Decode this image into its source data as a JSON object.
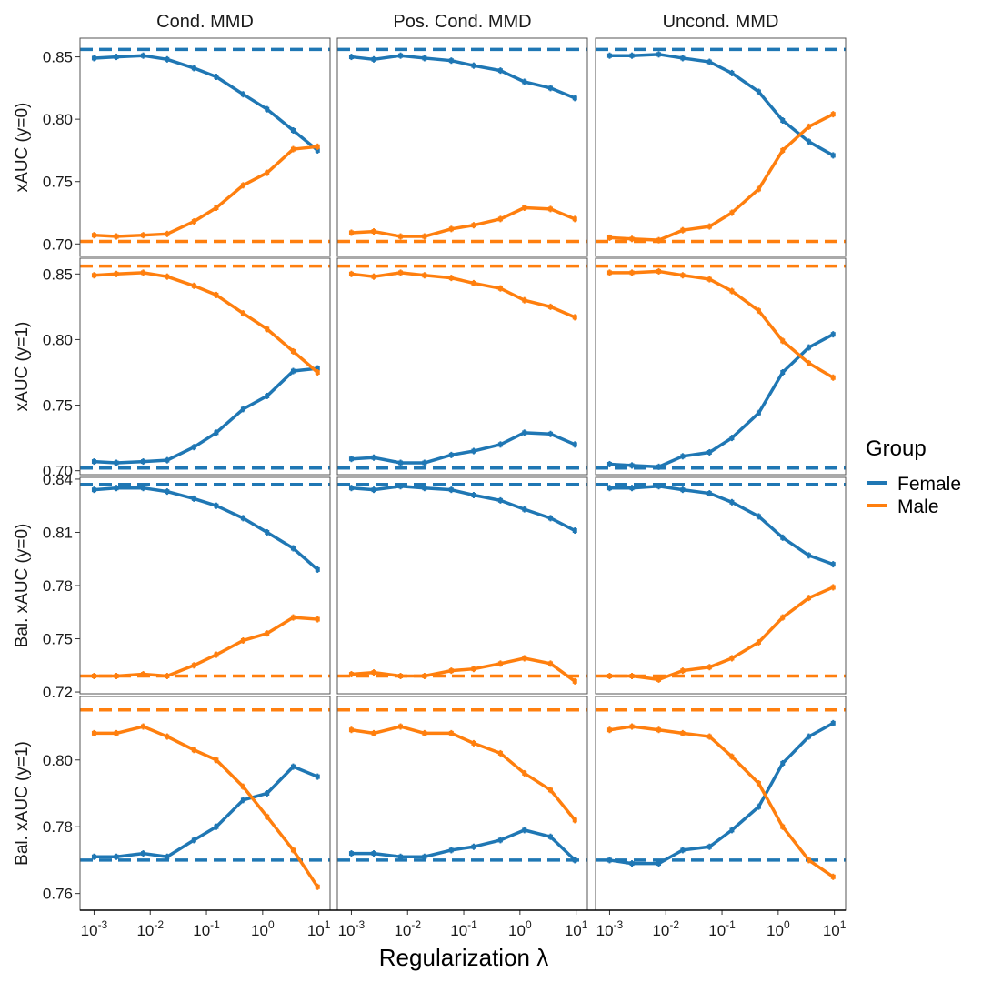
{
  "chart_data": {
    "type": "line",
    "xlabel": "Regularization λ",
    "x_scale": "log10",
    "x": [
      0.001,
      0.0025,
      0.0075,
      0.02,
      0.06,
      0.15,
      0.45,
      1.2,
      3.5,
      9.5
    ],
    "x_tick_values": [
      -3,
      -2,
      -1,
      0,
      1
    ],
    "x_tick_base": "10",
    "x_tick_exponents": [
      "-3",
      "-2",
      "-1",
      "0",
      "1"
    ],
    "columns": [
      "Cond. MMD",
      "Pos. Cond. MMD",
      "Uncond. MMD"
    ],
    "rows": [
      {
        "ylabel": "xAUC (y=0)",
        "ylim": [
          0.69,
          0.865
        ],
        "y_ticks": [
          0.7,
          0.75,
          0.8,
          0.85
        ],
        "y_tick_labels": [
          "0.70",
          "0.75",
          "0.80",
          "0.85"
        ],
        "ref_lines": {
          "Female": 0.856,
          "Male": 0.702
        },
        "panels": [
          {
            "Female": [
              0.849,
              0.85,
              0.851,
              0.848,
              0.841,
              0.834,
              0.82,
              0.808,
              0.791,
              0.775
            ],
            "Male": [
              0.707,
              0.706,
              0.707,
              0.708,
              0.718,
              0.729,
              0.747,
              0.757,
              0.776,
              0.778
            ]
          },
          {
            "Female": [
              0.85,
              0.848,
              0.851,
              0.849,
              0.847,
              0.843,
              0.839,
              0.83,
              0.825,
              0.817
            ],
            "Male": [
              0.709,
              0.71,
              0.706,
              0.706,
              0.712,
              0.715,
              0.72,
              0.729,
              0.728,
              0.72
            ]
          },
          {
            "Female": [
              0.851,
              0.851,
              0.852,
              0.849,
              0.846,
              0.837,
              0.822,
              0.799,
              0.782,
              0.771
            ],
            "Male": [
              0.705,
              0.704,
              0.703,
              0.711,
              0.714,
              0.725,
              0.744,
              0.775,
              0.794,
              0.804
            ]
          }
        ]
      },
      {
        "ylabel": "xAUC (y=1)",
        "ylim": [
          0.697,
          0.862
        ],
        "y_ticks": [
          0.7,
          0.75,
          0.8,
          0.85
        ],
        "y_tick_labels": [
          "0.70",
          "0.75",
          "0.80",
          "0.85"
        ],
        "ref_lines": {
          "Female": 0.702,
          "Male": 0.856
        },
        "panels": [
          {
            "Female": [
              0.707,
              0.706,
              0.707,
              0.708,
              0.718,
              0.729,
              0.747,
              0.757,
              0.776,
              0.778
            ],
            "Male": [
              0.849,
              0.85,
              0.851,
              0.848,
              0.841,
              0.834,
              0.82,
              0.808,
              0.791,
              0.775
            ]
          },
          {
            "Female": [
              0.709,
              0.71,
              0.706,
              0.706,
              0.712,
              0.715,
              0.72,
              0.729,
              0.728,
              0.72
            ],
            "Male": [
              0.85,
              0.848,
              0.851,
              0.849,
              0.847,
              0.843,
              0.839,
              0.83,
              0.825,
              0.817
            ]
          },
          {
            "Female": [
              0.705,
              0.704,
              0.703,
              0.711,
              0.714,
              0.725,
              0.744,
              0.775,
              0.794,
              0.804
            ],
            "Male": [
              0.851,
              0.851,
              0.852,
              0.849,
              0.846,
              0.837,
              0.822,
              0.799,
              0.782,
              0.771
            ]
          }
        ]
      },
      {
        "ylabel": "Bal. xAUC (y=0)",
        "ylim": [
          0.719,
          0.841
        ],
        "y_ticks": [
          0.72,
          0.75,
          0.78,
          0.81,
          0.84
        ],
        "y_tick_labels": [
          "0.72",
          "0.75",
          "0.78",
          "0.81",
          "0.84"
        ],
        "ref_lines": {
          "Female": 0.837,
          "Male": 0.729
        },
        "panels": [
          {
            "Female": [
              0.834,
              0.835,
              0.835,
              0.833,
              0.829,
              0.825,
              0.818,
              0.81,
              0.801,
              0.789
            ],
            "Male": [
              0.729,
              0.729,
              0.73,
              0.729,
              0.735,
              0.741,
              0.749,
              0.753,
              0.762,
              0.761
            ]
          },
          {
            "Female": [
              0.835,
              0.834,
              0.836,
              0.835,
              0.834,
              0.831,
              0.828,
              0.823,
              0.818,
              0.811
            ],
            "Male": [
              0.73,
              0.731,
              0.729,
              0.729,
              0.732,
              0.733,
              0.736,
              0.739,
              0.736,
              0.726
            ]
          },
          {
            "Female": [
              0.835,
              0.835,
              0.836,
              0.834,
              0.832,
              0.827,
              0.819,
              0.807,
              0.797,
              0.792
            ],
            "Male": [
              0.729,
              0.729,
              0.727,
              0.732,
              0.734,
              0.739,
              0.748,
              0.762,
              0.773,
              0.779
            ]
          }
        ]
      },
      {
        "ylabel": "Bal. xAUC (y=1)",
        "ylim": [
          0.755,
          0.819
        ],
        "y_ticks": [
          0.76,
          0.78,
          0.8
        ],
        "y_tick_labels": [
          "0.76",
          "0.78",
          "0.80"
        ],
        "ref_lines": {
          "Female": 0.77,
          "Male": 0.815
        },
        "panels": [
          {
            "Female": [
              0.771,
              0.771,
              0.772,
              0.771,
              0.776,
              0.78,
              0.788,
              0.79,
              0.798,
              0.795
            ],
            "Male": [
              0.808,
              0.808,
              0.81,
              0.807,
              0.803,
              0.8,
              0.792,
              0.783,
              0.773,
              0.762
            ]
          },
          {
            "Female": [
              0.772,
              0.772,
              0.771,
              0.771,
              0.773,
              0.774,
              0.776,
              0.779,
              0.777,
              0.77
            ],
            "Male": [
              0.809,
              0.808,
              0.81,
              0.808,
              0.808,
              0.805,
              0.802,
              0.796,
              0.791,
              0.782
            ]
          },
          {
            "Female": [
              0.77,
              0.769,
              0.769,
              0.773,
              0.774,
              0.779,
              0.786,
              0.799,
              0.807,
              0.811
            ],
            "Male": [
              0.809,
              0.81,
              0.809,
              0.808,
              0.807,
              0.801,
              0.793,
              0.78,
              0.77,
              0.765
            ]
          }
        ]
      }
    ],
    "series": [
      {
        "name": "Female",
        "color": "#1f77b4"
      },
      {
        "name": "Male",
        "color": "#ff7f0e"
      }
    ],
    "legend": {
      "title": "Group",
      "position": "right",
      "items": [
        "Female",
        "Male"
      ]
    },
    "grid": false
  }
}
